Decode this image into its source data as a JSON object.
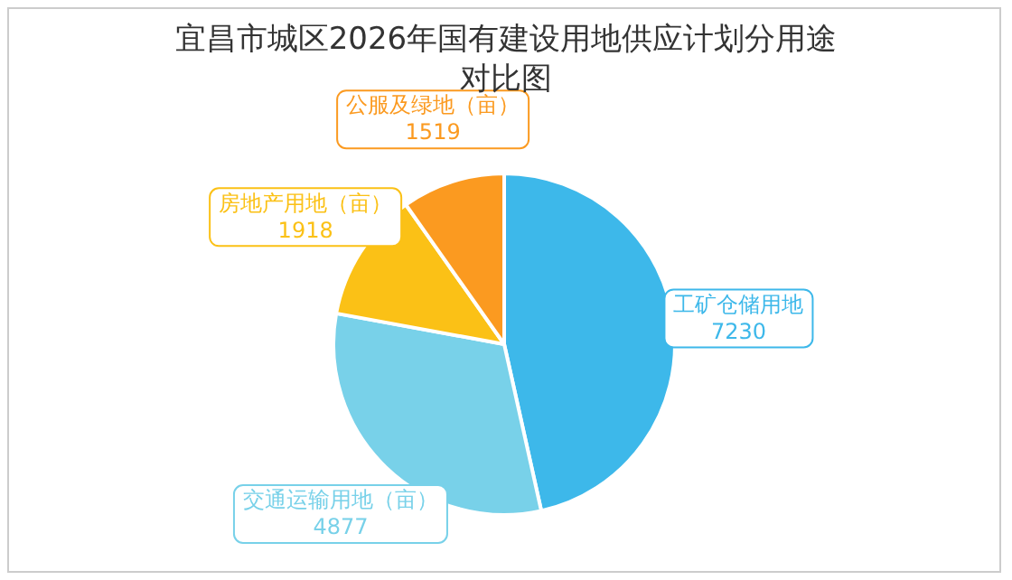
{
  "chart_data": {
    "type": "pie",
    "title": "宜昌市城区2026年国有建设用地供应计划分用途对比图",
    "categories": [
      "工矿仓储用地",
      "交通运输用地（亩）",
      "房地产用地（亩）",
      "公服及绿地（亩）"
    ],
    "values": [
      7230,
      4877,
      1918,
      1519
    ],
    "colors": [
      "#3db8ea",
      "#78d1e9",
      "#fbc116",
      "#fb9a20"
    ],
    "data_labels": true,
    "legend": false
  }
}
